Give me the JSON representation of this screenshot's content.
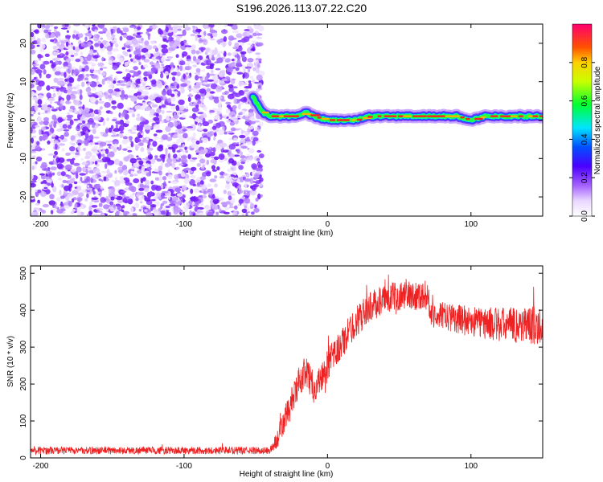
{
  "title": "S196.2026.113.07.22.C20",
  "colors": {
    "trace": "#ee2222",
    "frame": "#000000"
  },
  "chart_data": [
    {
      "type": "heatmap",
      "name": "spectrogram",
      "xlabel": "Height of straight line (km)",
      "ylabel": "Frequency (Hz)",
      "xlim": [
        -207,
        150
      ],
      "ylim": [
        -25,
        25
      ],
      "xticks": [
        -200,
        -100,
        0,
        100
      ],
      "yticks": [
        -20,
        -10,
        0,
        10,
        20
      ],
      "colorbar": {
        "label": "Normalized spectral amplitude",
        "range": [
          0,
          1
        ],
        "ticks": [
          "0.0",
          "0.2",
          "0.4",
          "0.6",
          "0.8"
        ],
        "tick_values": [
          0,
          0.2,
          0.4,
          0.6,
          0.8
        ]
      },
      "noise_region_x": [
        -207,
        -48
      ],
      "signal_track": {
        "x": [
          -52,
          -45,
          -40,
          -30,
          -20,
          -15,
          -10,
          0,
          10,
          20,
          30,
          40,
          50,
          60,
          70,
          80,
          90,
          100,
          110,
          120,
          130,
          140,
          150
        ],
        "freq": [
          6,
          2,
          1,
          1,
          1,
          2,
          1,
          0,
          0,
          0,
          1,
          1,
          1,
          1,
          1,
          1,
          1,
          0,
          1,
          1,
          1,
          1,
          1
        ]
      }
    },
    {
      "type": "line",
      "name": "snr",
      "xlabel": "Height of straight line (km)",
      "ylabel": "SNR (10 * v/v)",
      "xlim": [
        -207,
        150
      ],
      "ylim": [
        0,
        520
      ],
      "xticks": [
        -200,
        -100,
        0,
        100
      ],
      "yticks": [
        0,
        100,
        200,
        300,
        400,
        500
      ],
      "trend": {
        "x": [
          -207,
          -40,
          -35,
          -25,
          -20,
          -15,
          -10,
          -5,
          0,
          10,
          20,
          30,
          40,
          50,
          60,
          70,
          72,
          80,
          100,
          120,
          140,
          150
        ],
        "y": [
          20,
          20,
          50,
          150,
          200,
          240,
          190,
          210,
          250,
          310,
          370,
          410,
          430,
          440,
          440,
          440,
          390,
          385,
          370,
          360,
          360,
          360
        ]
      },
      "noise_amplitude": {
        "x": [
          -207,
          -40,
          -30,
          0,
          40,
          70,
          72,
          150
        ],
        "a": [
          10,
          10,
          40,
          45,
          40,
          40,
          35,
          55
        ]
      }
    }
  ]
}
